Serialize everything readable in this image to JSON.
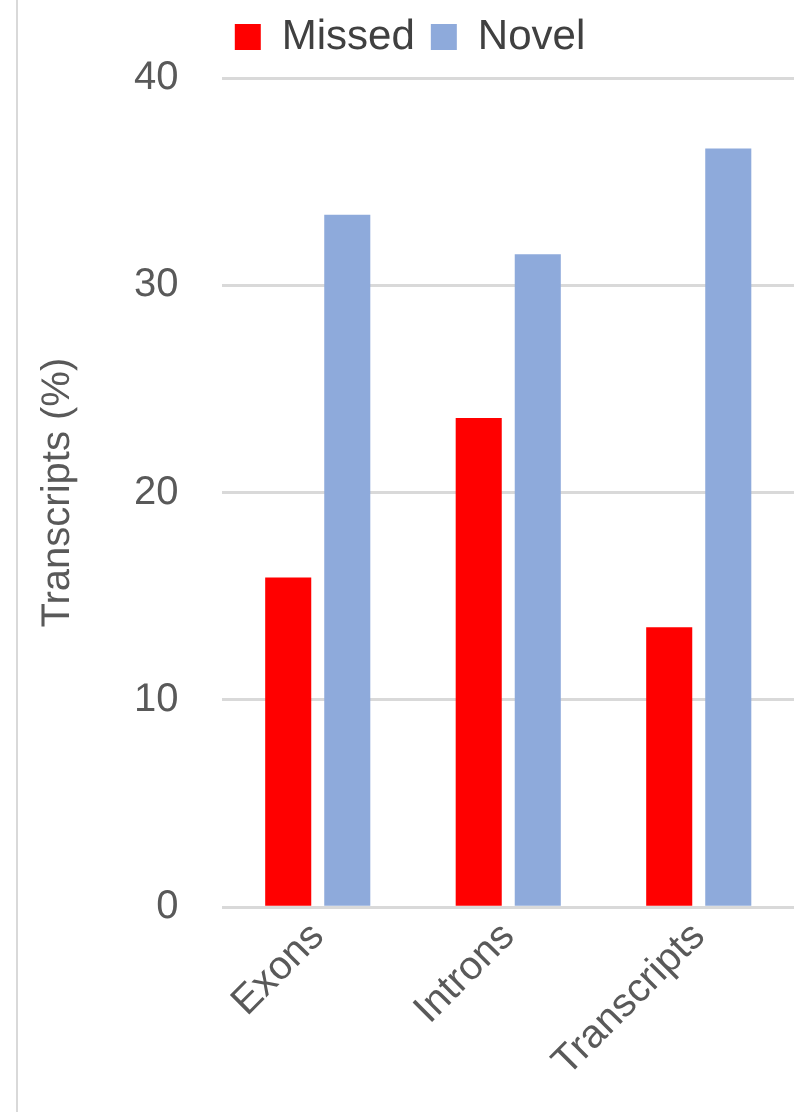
{
  "chart_data": {
    "type": "bar",
    "ylabel": "Transcripts (%)",
    "categories": [
      "Exons",
      "Introns",
      "Transcripts"
    ],
    "series": [
      {
        "name": "Missed",
        "color": "#ff0000",
        "values": [
          15.9,
          23.6,
          13.5
        ]
      },
      {
        "name": "Novel",
        "color": "#8eaadb",
        "values": [
          33.4,
          31.5,
          36.6
        ]
      }
    ],
    "ylim": [
      0,
      40
    ],
    "yticks": [
      0,
      10,
      20,
      30,
      40
    ],
    "grid": "y",
    "legend": "top"
  }
}
